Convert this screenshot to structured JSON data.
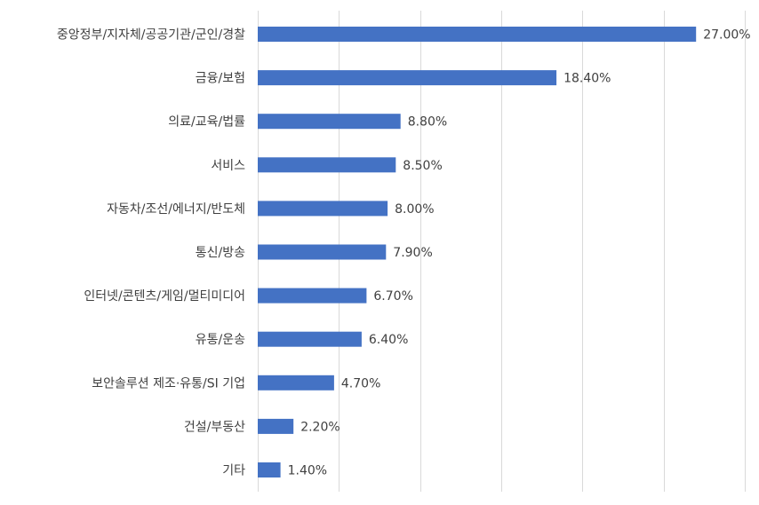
{
  "chart_data": {
    "type": "bar",
    "orientation": "horizontal",
    "categories": [
      "중앙정부/지자체/공공기관/군인/경찰",
      "금융/보험",
      "의료/교육/법률",
      "서비스",
      "자동차/조선/에너지/반도체",
      "통신/방송",
      "인터넷/콘텐츠/게임/멀티미디어",
      "유통/운송",
      "보안솔루션 제조·유통/SI 기업",
      "건설/부동산",
      "기타"
    ],
    "values": [
      27.0,
      18.4,
      8.8,
      8.5,
      8.0,
      7.9,
      6.7,
      6.4,
      4.7,
      2.2,
      1.4
    ],
    "value_labels": [
      "27.00%",
      "18.40%",
      "8.80%",
      "8.50%",
      "8.00%",
      "7.90%",
      "6.70%",
      "6.40%",
      "4.70%",
      "2.20%",
      "1.40%"
    ],
    "xlim": [
      0,
      30
    ],
    "grid_step": 5,
    "grid": true,
    "legend": "none",
    "bar_color": "#4472C4",
    "grid_color": "#d9d9d9",
    "text_color": "#404040"
  }
}
